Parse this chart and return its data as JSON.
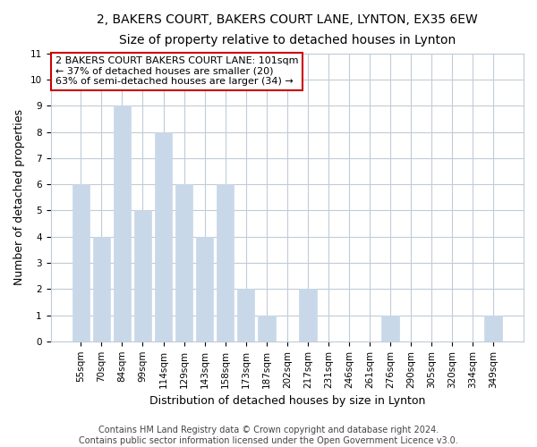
{
  "title": "2, BAKERS COURT, BAKERS COURT LANE, LYNTON, EX35 6EW",
  "subtitle": "Size of property relative to detached houses in Lynton",
  "xlabel": "Distribution of detached houses by size in Lynton",
  "ylabel": "Number of detached properties",
  "bar_labels": [
    "55sqm",
    "70sqm",
    "84sqm",
    "99sqm",
    "114sqm",
    "129sqm",
    "143sqm",
    "158sqm",
    "173sqm",
    "187sqm",
    "202sqm",
    "217sqm",
    "231sqm",
    "246sqm",
    "261sqm",
    "276sqm",
    "290sqm",
    "305sqm",
    "320sqm",
    "334sqm",
    "349sqm"
  ],
  "bar_values": [
    6,
    4,
    9,
    5,
    8,
    6,
    4,
    6,
    2,
    1,
    0,
    2,
    0,
    0,
    0,
    1,
    0,
    0,
    0,
    0,
    1
  ],
  "bar_color": "#c8d8e8",
  "annotation_box_line1": "2 BAKERS COURT BAKERS COURT LANE: 101sqm",
  "annotation_box_line2": "← 37% of detached houses are smaller (20)",
  "annotation_box_line3": "63% of semi-detached houses are larger (34) →",
  "annotation_box_color": "#ffffff",
  "annotation_box_edge_color": "#cc0000",
  "ylim": [
    0,
    11
  ],
  "yticks": [
    0,
    1,
    2,
    3,
    4,
    5,
    6,
    7,
    8,
    9,
    10,
    11
  ],
  "footer_line1": "Contains HM Land Registry data © Crown copyright and database right 2024.",
  "footer_line2": "Contains public sector information licensed under the Open Government Licence v3.0.",
  "bg_color": "#ffffff",
  "grid_color": "#c0ccd8",
  "title_fontsize": 10,
  "subtitle_fontsize": 9,
  "axis_label_fontsize": 9,
  "tick_fontsize": 7.5,
  "annotation_fontsize": 8,
  "footer_fontsize": 7
}
